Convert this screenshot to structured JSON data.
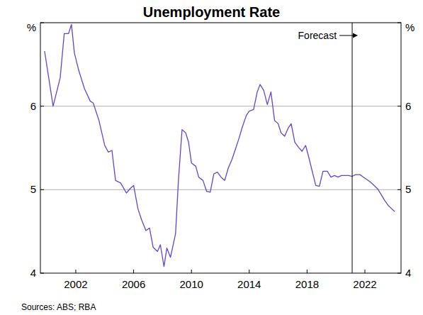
{
  "chart_data": {
    "type": "line",
    "title": "Unemployment Rate",
    "source": "Sources: ABS; RBA",
    "x": [
      1999.84,
      2000.43,
      2000.92,
      2001.2,
      2001.5,
      2001.7,
      2001.9,
      2002.2,
      2002.6,
      2003.0,
      2003.2,
      2003.6,
      2004.0,
      2004.25,
      2004.5,
      2004.75,
      2005.1,
      2005.5,
      2005.8,
      2006.0,
      2006.3,
      2006.55,
      2006.85,
      2007.1,
      2007.35,
      2007.65,
      2007.85,
      2008.1,
      2008.3,
      2008.55,
      2008.9,
      2009.1,
      2009.35,
      2009.6,
      2009.8,
      2010.0,
      2010.3,
      2010.5,
      2010.8,
      2011.05,
      2011.3,
      2011.55,
      2011.8,
      2012.05,
      2012.3,
      2012.55,
      2012.8,
      2013.05,
      2013.3,
      2013.5,
      2013.8,
      2014.0,
      2014.3,
      2014.55,
      2014.75,
      2015.0,
      2015.25,
      2015.5,
      2015.75,
      2016.0,
      2016.2,
      2016.45,
      2016.7,
      2016.9,
      2017.15,
      2017.4,
      2017.65,
      2017.9,
      2018.1,
      2018.4,
      2018.6,
      2018.85,
      2019.1,
      2019.4,
      2019.65,
      2019.9,
      2020.14,
      2020.38,
      2020.63,
      2020.87,
      2021.12,
      2021.36,
      2021.65,
      2021.9,
      2022.15,
      2022.39,
      2022.64,
      2022.88,
      2023.13,
      2023.37,
      2023.62,
      2023.86,
      2024.06
    ],
    "series": [
      {
        "color": "#6644cc",
        "values": [
          6.66,
          6.0,
          6.34,
          6.87,
          6.87,
          6.98,
          6.64,
          6.43,
          6.21,
          6.06,
          6.04,
          5.83,
          5.53,
          5.45,
          5.47,
          5.11,
          5.08,
          4.96,
          5.02,
          5.05,
          4.77,
          4.64,
          4.51,
          4.54,
          4.31,
          4.26,
          4.34,
          4.08,
          4.3,
          4.19,
          4.47,
          5.11,
          5.72,
          5.68,
          5.57,
          5.32,
          5.28,
          5.15,
          5.11,
          4.98,
          4.97,
          5.19,
          5.21,
          5.15,
          5.11,
          5.26,
          5.36,
          5.49,
          5.62,
          5.74,
          5.89,
          5.94,
          5.96,
          6.17,
          6.26,
          6.19,
          6.02,
          6.17,
          5.83,
          5.79,
          5.68,
          5.64,
          5.74,
          5.79,
          5.57,
          5.51,
          5.46,
          5.53,
          5.4,
          5.19,
          5.05,
          5.04,
          5.22,
          5.22,
          5.15,
          5.17,
          5.15,
          5.17,
          5.17,
          5.17,
          5.16,
          5.18,
          5.18,
          5.15,
          5.12,
          5.09,
          5.05,
          5.01,
          4.94,
          4.87,
          4.81,
          4.77,
          4.74
        ]
      }
    ],
    "xlim": [
      1999.55,
      2024.5
    ],
    "xticks": [
      2002,
      2006,
      2010,
      2014,
      2018,
      2022
    ],
    "ylim": [
      4,
      7
    ],
    "yticks": [
      4,
      5,
      6,
      {
        "value": 7,
        "label": "%"
      }
    ],
    "grid": true,
    "annotations": [
      {
        "text": "Forecast",
        "x": 2021.12
      }
    ]
  }
}
